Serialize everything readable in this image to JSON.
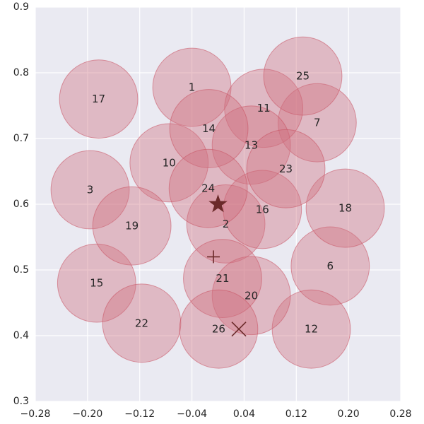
{
  "chart_data": {
    "type": "scatter",
    "xlim": [
      -0.28,
      0.28
    ],
    "ylim": [
      0.3,
      0.9
    ],
    "xticks": [
      -0.28,
      -0.2,
      -0.12,
      -0.04,
      0.04,
      0.12,
      0.2,
      0.28
    ],
    "yticks": [
      0.3,
      0.4,
      0.5,
      0.6,
      0.7,
      0.8,
      0.9
    ],
    "xtick_labels": [
      "−0.28",
      "−0.20",
      "−0.12",
      "−0.04",
      "0.04",
      "0.12",
      "0.20",
      "0.28"
    ],
    "ytick_labels": [
      "0.3",
      "0.4",
      "0.5",
      "0.6",
      "0.7",
      "0.8",
      "0.9"
    ],
    "grid": true,
    "circle_radius": 0.06,
    "circles": [
      {
        "label": "1",
        "x": -0.04,
        "y": 0.778
      },
      {
        "label": "2",
        "x": 0.012,
        "y": 0.57
      },
      {
        "label": "3",
        "x": -0.196,
        "y": 0.622
      },
      {
        "label": "6",
        "x": 0.172,
        "y": 0.506
      },
      {
        "label": "7",
        "x": 0.152,
        "y": 0.724
      },
      {
        "label": "10",
        "x": -0.075,
        "y": 0.663
      },
      {
        "label": "11",
        "x": 0.07,
        "y": 0.746
      },
      {
        "label": "12",
        "x": 0.143,
        "y": 0.41
      },
      {
        "label": "13",
        "x": 0.051,
        "y": 0.69
      },
      {
        "label": "14",
        "x": -0.014,
        "y": 0.715
      },
      {
        "label": "15",
        "x": -0.186,
        "y": 0.48
      },
      {
        "label": "16",
        "x": 0.068,
        "y": 0.592
      },
      {
        "label": "17",
        "x": -0.183,
        "y": 0.76
      },
      {
        "label": "18",
        "x": 0.195,
        "y": 0.594
      },
      {
        "label": "19",
        "x": -0.132,
        "y": 0.567
      },
      {
        "label": "20",
        "x": 0.051,
        "y": 0.461
      },
      {
        "label": "21",
        "x": 0.007,
        "y": 0.487
      },
      {
        "label": "22",
        "x": -0.117,
        "y": 0.419
      },
      {
        "label": "23",
        "x": 0.104,
        "y": 0.654
      },
      {
        "label": "24",
        "x": -0.015,
        "y": 0.624
      },
      {
        "label": "25",
        "x": 0.13,
        "y": 0.795
      },
      {
        "label": "26",
        "x": 0.001,
        "y": 0.41
      }
    ],
    "markers": [
      {
        "symbol": "star",
        "x": 0.0,
        "y": 0.6
      },
      {
        "symbol": "plus",
        "x": -0.007,
        "y": 0.52
      },
      {
        "symbol": "cross",
        "x": 0.032,
        "y": 0.41
      }
    ],
    "colors": {
      "background": "#EAEAF2",
      "grid": "#FFFFFF",
      "circle_fill": "#D07080",
      "circle_stroke": "#C85060",
      "marker": "#6B2A2A",
      "text": "#262626"
    }
  }
}
